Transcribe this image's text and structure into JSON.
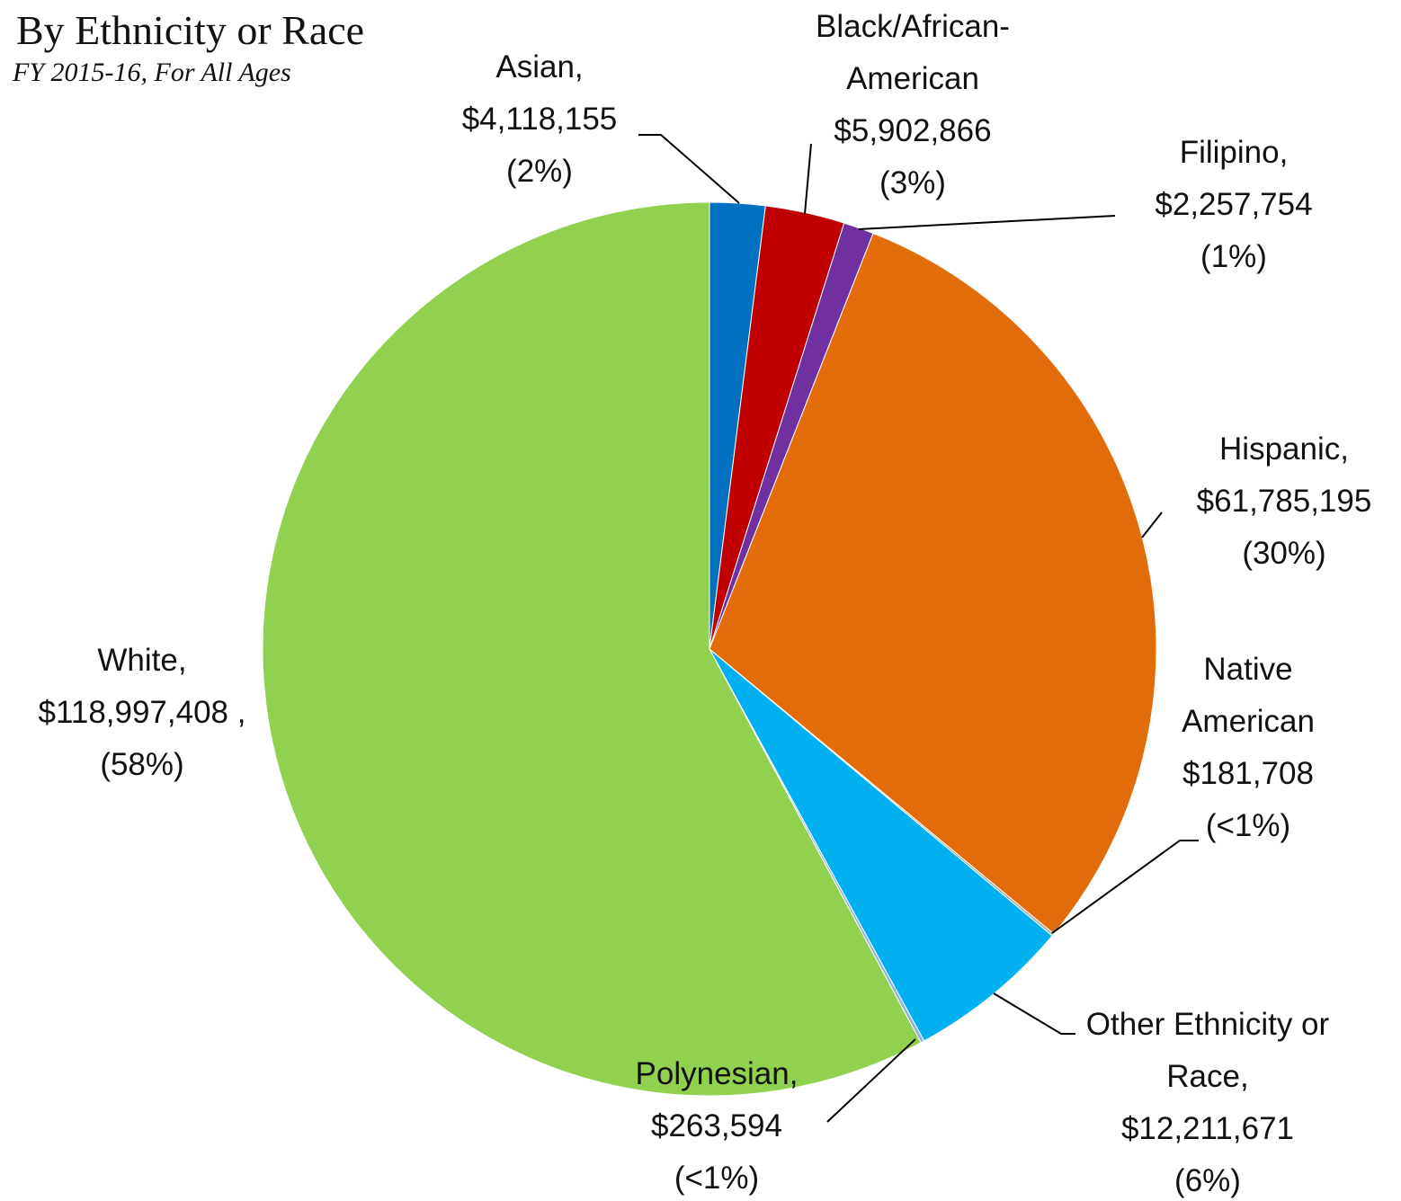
{
  "chart_data": {
    "type": "pie",
    "title": "By Ethnicity or Race",
    "subtitle": "FY 2015-16, For All Ages",
    "categories": [
      "Asian,",
      "Black/African-American",
      "Filipino,",
      "Hispanic,",
      "Native American",
      "Other Ethnicity or Race,",
      "Polynesian,",
      "White,"
    ],
    "values": [
      4118155,
      5902866,
      2257754,
      61785195,
      181708,
      12211671,
      263594,
      118997408
    ],
    "value_labels": [
      "$4,118,155",
      "$5,902,866",
      "$2,257,754",
      "$61,785,195",
      "$181,708",
      "$12,211,671",
      "$263,594",
      "$118,997,408 ,"
    ],
    "percent_labels": [
      "(2%)",
      "(3%)",
      "(1%)",
      "(30%)",
      "(<1%)",
      "(6%)",
      "(<1%)",
      "(58%)"
    ],
    "colors": [
      "#0070c0",
      "#c00000",
      "#7030a0",
      "#e36c0a",
      "#a5a5a5",
      "#00b0f0",
      "#8eb4e3",
      "#92d050"
    ]
  }
}
